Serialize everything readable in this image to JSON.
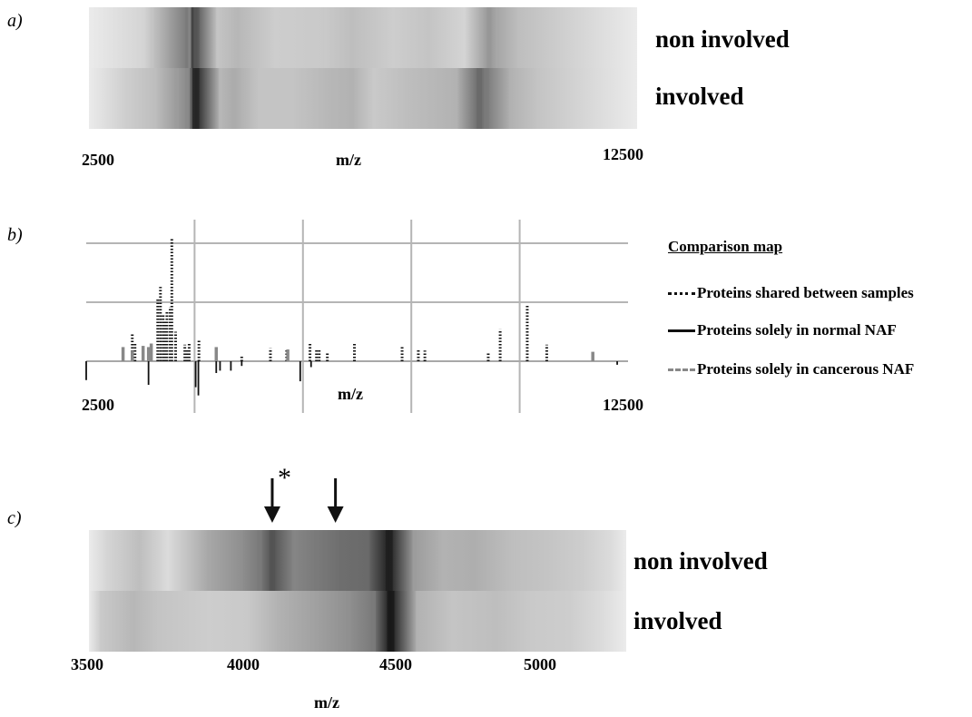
{
  "panels": {
    "a": {
      "label": "a)",
      "rows": [
        "non involved",
        "involved"
      ],
      "xmin_label": "2500",
      "xmax_label": "12500",
      "xlabel": "m/z"
    },
    "b": {
      "label": "b)",
      "xmin_label": "2500",
      "xmax_label": "12500",
      "xlabel": "m/z",
      "legend": {
        "title": "Comparison map",
        "items": [
          {
            "label": "Proteins shared between samples",
            "style": "dotted",
            "color": "#111111"
          },
          {
            "label": "Proteins solely in normal NAF",
            "style": "solid",
            "color": "#111111"
          },
          {
            "label": "Proteins solely in cancerous NAF",
            "style": "dashed",
            "color": "#888888"
          }
        ]
      }
    },
    "c": {
      "label": "c)",
      "rows": [
        "non involved",
        "involved"
      ],
      "ticks": [
        "3500",
        "4000",
        "4500",
        "5000"
      ],
      "xlabel": "m/z",
      "asterisk": "*"
    }
  },
  "chart_data": [
    {
      "type": "heatmap",
      "panel": "a",
      "xlim": [
        2500,
        12500
      ],
      "xlabel": "m/z",
      "rows": [
        "non involved",
        "involved"
      ],
      "bands": [
        [
          {
            "mz": 3500,
            "intensity": 0.15
          },
          {
            "mz": 3650,
            "intensity": 0.22
          },
          {
            "mz": 4300,
            "intensity": 0.55
          },
          {
            "mz": 4350,
            "intensity": 0.5
          },
          {
            "mz": 4420,
            "intensity": 0.82
          },
          {
            "mz": 4460,
            "intensity": 0.7
          },
          {
            "mz": 4850,
            "intensity": 0.22
          },
          {
            "mz": 5200,
            "intensity": 0.28
          },
          {
            "mz": 5900,
            "intensity": 0.18
          },
          {
            "mz": 6800,
            "intensity": 0.2
          },
          {
            "mz": 7300,
            "intensity": 0.25
          },
          {
            "mz": 8050,
            "intensity": 0.18
          },
          {
            "mz": 8700,
            "intensity": 0.22
          },
          {
            "mz": 9350,
            "intensity": 0.15
          },
          {
            "mz": 9800,
            "intensity": 0.42
          },
          {
            "mz": 9950,
            "intensity": 0.35
          },
          {
            "mz": 10350,
            "intensity": 0.25
          }
        ],
        [
          {
            "mz": 3200,
            "intensity": 0.18
          },
          {
            "mz": 3700,
            "intensity": 0.25
          },
          {
            "mz": 4100,
            "intensity": 0.4
          },
          {
            "mz": 4300,
            "intensity": 0.48
          },
          {
            "mz": 4450,
            "intensity": 0.92
          },
          {
            "mz": 4900,
            "intensity": 0.28
          },
          {
            "mz": 5150,
            "intensity": 0.33
          },
          {
            "mz": 5600,
            "intensity": 0.22
          },
          {
            "mz": 6200,
            "intensity": 0.22
          },
          {
            "mz": 6900,
            "intensity": 0.28
          },
          {
            "mz": 7300,
            "intensity": 0.3
          },
          {
            "mz": 7700,
            "intensity": 0.2
          },
          {
            "mz": 8300,
            "intensity": 0.25
          },
          {
            "mz": 9200,
            "intensity": 0.3
          },
          {
            "mz": 9620,
            "intensity": 0.62
          },
          {
            "mz": 9750,
            "intensity": 0.55
          },
          {
            "mz": 10200,
            "intensity": 0.3
          },
          {
            "mz": 10700,
            "intensity": 0.22
          }
        ]
      ]
    },
    {
      "type": "bar",
      "panel": "b",
      "xlim": [
        2500,
        12500
      ],
      "ylim": [
        -3,
        11
      ],
      "xlabel": "m/z",
      "grid": true,
      "series": [
        {
          "name": "Proteins shared between samples",
          "style": "dotted",
          "points": [
            {
              "x": 3350,
              "y": 2.3
            },
            {
              "x": 3400,
              "y": 1.5
            },
            {
              "x": 3820,
              "y": 5.3
            },
            {
              "x": 3870,
              "y": 6.3
            },
            {
              "x": 3920,
              "y": 4.0
            },
            {
              "x": 3960,
              "y": 3.5
            },
            {
              "x": 3990,
              "y": 4.2
            },
            {
              "x": 4050,
              "y": 4.6
            },
            {
              "x": 4080,
              "y": 10.5
            },
            {
              "x": 4150,
              "y": 2.5
            },
            {
              "x": 4320,
              "y": 1.4
            },
            {
              "x": 4360,
              "y": 1.0
            },
            {
              "x": 4400,
              "y": 1.6
            },
            {
              "x": 4580,
              "y": 1.8
            },
            {
              "x": 5370,
              "y": 0.5
            },
            {
              "x": 5900,
              "y": 1.1
            },
            {
              "x": 6200,
              "y": 1.0
            },
            {
              "x": 6630,
              "y": 1.5
            },
            {
              "x": 6750,
              "y": 1.0
            },
            {
              "x": 6800,
              "y": 1.0
            },
            {
              "x": 6950,
              "y": 0.8
            },
            {
              "x": 7450,
              "y": 1.6
            },
            {
              "x": 8330,
              "y": 1.2
            },
            {
              "x": 8630,
              "y": 1.0
            },
            {
              "x": 8750,
              "y": 0.9
            },
            {
              "x": 9920,
              "y": 0.8
            },
            {
              "x": 10140,
              "y": 2.7
            },
            {
              "x": 10640,
              "y": 4.8
            },
            {
              "x": 11000,
              "y": 1.4
            }
          ]
        },
        {
          "name": "Proteins solely in normal NAF",
          "style": "solid",
          "points": [
            {
              "x": 2500,
              "y": -1.6
            },
            {
              "x": 3650,
              "y": -2.0
            },
            {
              "x": 4520,
              "y": -2.2
            },
            {
              "x": 4570,
              "y": -2.9
            },
            {
              "x": 4900,
              "y": -1.0
            },
            {
              "x": 4970,
              "y": -0.8
            },
            {
              "x": 5170,
              "y": -0.8
            },
            {
              "x": 5370,
              "y": -0.4
            },
            {
              "x": 6450,
              "y": -1.7
            },
            {
              "x": 6650,
              "y": -0.5
            },
            {
              "x": 12300,
              "y": -0.3
            }
          ]
        },
        {
          "name": "Proteins solely in cancerous NAF",
          "style": "dashed",
          "points": [
            {
              "x": 3180,
              "y": 1.2
            },
            {
              "x": 3350,
              "y": 0.9
            },
            {
              "x": 3550,
              "y": 1.3
            },
            {
              "x": 3650,
              "y": 1.2
            },
            {
              "x": 3700,
              "y": 1.5
            },
            {
              "x": 4900,
              "y": 1.2
            },
            {
              "x": 6220,
              "y": 1.0
            },
            {
              "x": 11850,
              "y": 0.8
            }
          ]
        }
      ]
    },
    {
      "type": "heatmap",
      "panel": "c",
      "xlim": [
        3500,
        5200
      ],
      "xlabel": "m/z",
      "rows": [
        "non involved",
        "involved"
      ],
      "annotations": [
        {
          "mz": 4080,
          "label": "*"
        },
        {
          "mz": 4280,
          "label": ""
        }
      ],
      "bands": [
        [
          {
            "mz": 3560,
            "intensity": 0.15
          },
          {
            "mz": 3660,
            "intensity": 0.25
          },
          {
            "mz": 3750,
            "intensity": 0.12
          },
          {
            "mz": 3880,
            "intensity": 0.35
          },
          {
            "mz": 3980,
            "intensity": 0.45
          },
          {
            "mz": 4040,
            "intensity": 0.55
          },
          {
            "mz": 4080,
            "intensity": 0.72
          },
          {
            "mz": 4150,
            "intensity": 0.5
          },
          {
            "mz": 4220,
            "intensity": 0.55
          },
          {
            "mz": 4300,
            "intensity": 0.6
          },
          {
            "mz": 4380,
            "intensity": 0.62
          },
          {
            "mz": 4450,
            "intensity": 0.95
          },
          {
            "mz": 4530,
            "intensity": 0.4
          },
          {
            "mz": 4620,
            "intensity": 0.3
          },
          {
            "mz": 4720,
            "intensity": 0.32
          },
          {
            "mz": 4840,
            "intensity": 0.25
          },
          {
            "mz": 4950,
            "intensity": 0.22
          },
          {
            "mz": 5060,
            "intensity": 0.18
          },
          {
            "mz": 5150,
            "intensity": 0.12
          }
        ],
        [
          {
            "mz": 3540,
            "intensity": 0.2
          },
          {
            "mz": 3640,
            "intensity": 0.28
          },
          {
            "mz": 3720,
            "intensity": 0.22
          },
          {
            "mz": 3880,
            "intensity": 0.18
          },
          {
            "mz": 4000,
            "intensity": 0.2
          },
          {
            "mz": 4100,
            "intensity": 0.3
          },
          {
            "mz": 4220,
            "intensity": 0.38
          },
          {
            "mz": 4320,
            "intensity": 0.45
          },
          {
            "mz": 4400,
            "intensity": 0.55
          },
          {
            "mz": 4455,
            "intensity": 0.98
          },
          {
            "mz": 4540,
            "intensity": 0.3
          },
          {
            "mz": 4650,
            "intensity": 0.22
          },
          {
            "mz": 4790,
            "intensity": 0.25
          },
          {
            "mz": 4900,
            "intensity": 0.2
          },
          {
            "mz": 5020,
            "intensity": 0.18
          },
          {
            "mz": 5120,
            "intensity": 0.12
          }
        ]
      ]
    }
  ]
}
